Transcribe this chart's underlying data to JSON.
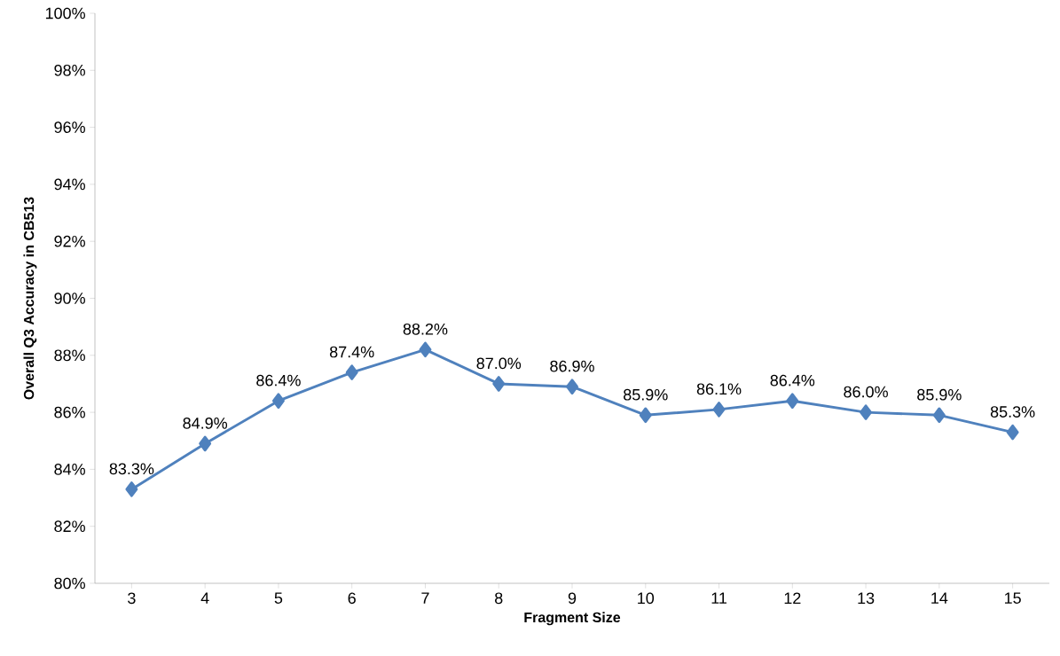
{
  "chart_data": {
    "type": "line",
    "xlabel": "Fragment Size",
    "ylabel": "Overall Q3 Accuracy in CB513",
    "categories": [
      "3",
      "4",
      "5",
      "6",
      "7",
      "8",
      "9",
      "10",
      "11",
      "12",
      "13",
      "14",
      "15"
    ],
    "series": [
      {
        "color": "#4f81bd",
        "values": [
          83.3,
          84.9,
          86.4,
          87.4,
          88.2,
          87.0,
          86.9,
          85.9,
          86.1,
          86.4,
          86.0,
          85.9,
          85.3
        ],
        "value_labels": [
          "83.3%",
          "84.9%",
          "86.4%",
          "87.4%",
          "88.2%",
          "87.0%",
          "86.9%",
          "85.9%",
          "86.1%",
          "86.4%",
          "86.0%",
          "85.9%",
          "85.3%"
        ]
      }
    ],
    "ylim": [
      80,
      100
    ],
    "yticks": [
      {
        "value": 80,
        "label": "80%"
      },
      {
        "value": 82,
        "label": "82%"
      },
      {
        "value": 84,
        "label": "84%"
      },
      {
        "value": 86,
        "label": "86%"
      },
      {
        "value": 88,
        "label": "88%"
      },
      {
        "value": 90,
        "label": "90%"
      },
      {
        "value": 92,
        "label": "92%"
      },
      {
        "value": 94,
        "label": "94%"
      },
      {
        "value": 96,
        "label": "96%"
      },
      {
        "value": 98,
        "label": "98%"
      },
      {
        "value": 100,
        "label": "100%"
      }
    ],
    "marker": "diamond",
    "line_style": "solid"
  }
}
